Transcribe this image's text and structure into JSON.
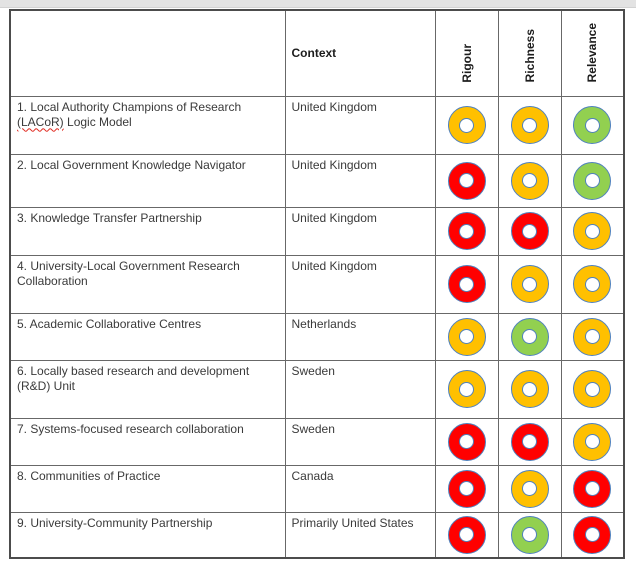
{
  "table": {
    "headers": {
      "intervention": "",
      "context": "Context",
      "criteria": [
        "Rigour",
        "Richness",
        "Relevance"
      ]
    },
    "rating_colors": {
      "red": "#ff0000",
      "amber": "#ffc000",
      "green": "#92d050"
    },
    "ring_outline_color": "#4f81bd",
    "rows": [
      {
        "label": "1. Local Authority Champions of Research (LACoR) Logic Model",
        "spell_error": "(LACoR)",
        "context": "United Kingdom",
        "ratings": [
          "amber",
          "amber",
          "green"
        ]
      },
      {
        "label": "2. Local Government Knowledge Navigator",
        "context": "United Kingdom",
        "ratings": [
          "red",
          "amber",
          "green"
        ]
      },
      {
        "label": "3. Knowledge Transfer Partnership",
        "context": "United Kingdom",
        "ratings": [
          "red",
          "red",
          "amber"
        ]
      },
      {
        "label": "4. University-Local Government Research Collaboration",
        "context": "United Kingdom",
        "ratings": [
          "red",
          "amber",
          "amber"
        ]
      },
      {
        "label": "5. Academic Collaborative Centres",
        "context": "Netherlands",
        "ratings": [
          "amber",
          "green",
          "amber"
        ]
      },
      {
        "label": "6. Locally based research and development (R&D) Unit",
        "context": "Sweden",
        "ratings": [
          "amber",
          "amber",
          "amber"
        ]
      },
      {
        "label": "7. Systems-focused research collaboration",
        "context": "Sweden",
        "ratings": [
          "red",
          "red",
          "amber"
        ]
      },
      {
        "label": "8. Communities of Practice",
        "context": "Canada",
        "ratings": [
          "red",
          "amber",
          "red"
        ]
      },
      {
        "label": "9. University-Community Partnership",
        "context": "Primarily United States",
        "ratings": [
          "red",
          "green",
          "red"
        ]
      }
    ]
  }
}
